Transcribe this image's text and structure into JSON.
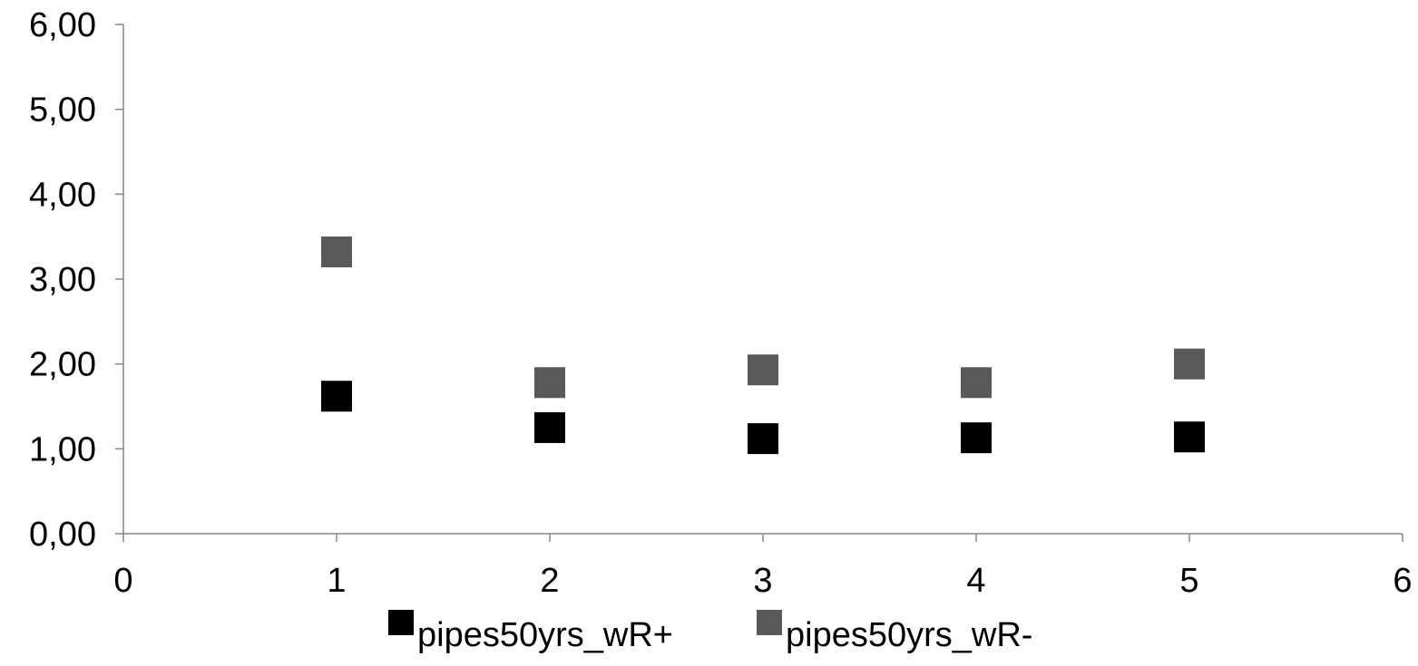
{
  "chart_data": {
    "type": "scatter",
    "title": "",
    "xlabel": "",
    "ylabel": "",
    "xlim": [
      0,
      6
    ],
    "ylim": [
      0,
      6
    ],
    "x_ticks": [
      0,
      1,
      2,
      3,
      4,
      5,
      6
    ],
    "x_tick_labels": [
      "0",
      "1",
      "2",
      "3",
      "4",
      "5",
      "6"
    ],
    "y_ticks": [
      0,
      1,
      2,
      3,
      4,
      5,
      6
    ],
    "y_tick_labels": [
      "0,00",
      "1,00",
      "2,00",
      "3,00",
      "4,00",
      "5,00",
      "6,00"
    ],
    "grid": false,
    "legend_position": "bottom",
    "series": [
      {
        "name": "pipes50yrs_wR+",
        "color": "#000000",
        "marker": "square",
        "x": [
          1,
          2,
          3,
          4,
          5
        ],
        "y": [
          1.62,
          1.25,
          1.12,
          1.13,
          1.14
        ]
      },
      {
        "name": "pipes50yrs_wR-",
        "color": "#595959",
        "marker": "square",
        "x": [
          1,
          2,
          3,
          4,
          5
        ],
        "y": [
          3.32,
          1.78,
          1.93,
          1.78,
          2.0
        ]
      }
    ]
  }
}
